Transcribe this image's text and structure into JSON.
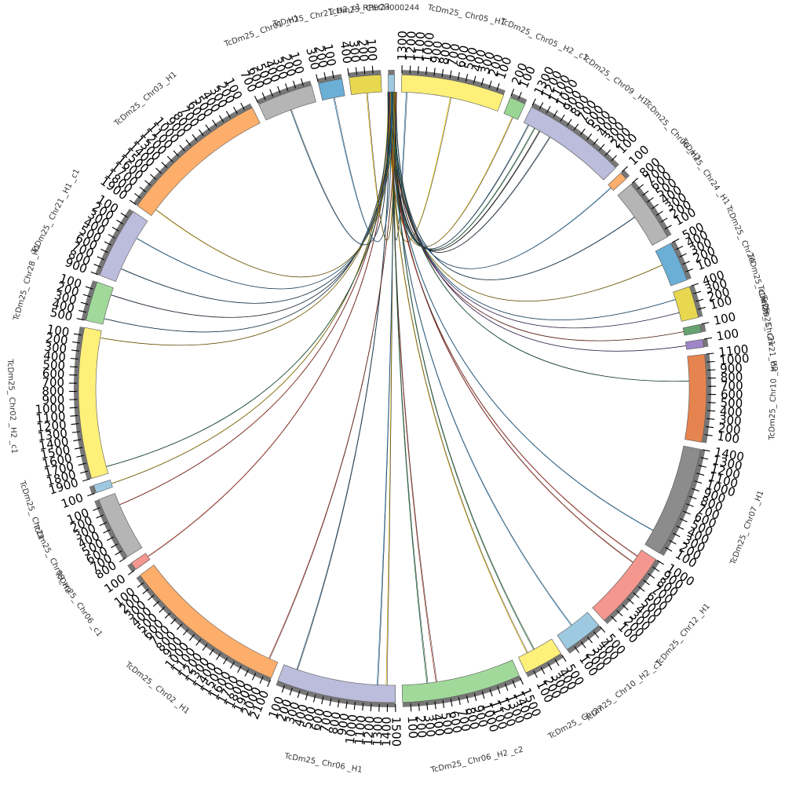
{
  "diagram": {
    "hub_label": "RPECH000244",
    "sectors": [
      {
        "label": "RPECH000244",
        "length": 30,
        "color": "#9ecae1",
        "ticks": []
      },
      {
        "label": "TcDm25_ Chr05 _H1",
        "length": 1300,
        "color": "#fff07a"
      },
      {
        "label": "TcDm25_ Chr05 _H2 _c1",
        "length": 200,
        "color": "#99d594"
      },
      {
        "label": "TcDm25_ Chr09 _H1",
        "length": 1300,
        "color": "#bcbddc"
      },
      {
        "label": "TcDm25_ Chr06 _H2",
        "length": 100,
        "color": "#fdae6b"
      },
      {
        "label": "TcDm25_ Chr24 _H1",
        "length": 800,
        "color": "#b5b5b5"
      },
      {
        "label": "TcDm25_ Chr24",
        "length": 500,
        "color": "#6baed6"
      },
      {
        "label": "TcDm25_ Chr25",
        "length": 400,
        "color": "#e7d84f"
      },
      {
        "label": "TcDm25_ Chr21",
        "length": 100,
        "color": "#66a36f"
      },
      {
        "label": "TcDm25_ Chr21_H2",
        "length": 100,
        "color": "#9e86c8"
      },
      {
        "label": "TcDm25_ Chr10 _H2",
        "length": 1100,
        "color": "#e6844f"
      },
      {
        "label": "TcDm25_ Chr07 _H1",
        "length": 1400,
        "color": "#8c8c8c"
      },
      {
        "label": "TcDm25_ Chr12 _H1",
        "length": 1000,
        "color": "#f4978e"
      },
      {
        "label": "TcDm25_ Chr10 _H2 _c1",
        "length": 500,
        "color": "#9ecae1"
      },
      {
        "label": "TcDm25_ Chr27",
        "length": 500,
        "color": "#fff07a"
      },
      {
        "label": "TcDm25_ Chr06 _H2 _c2",
        "length": 1500,
        "color": "#a1d99b"
      },
      {
        "label": "TcDm25_ Chr06 _H1",
        "length": 1500,
        "color": "#bcbddc"
      },
      {
        "label": "TcDm25_ Chr02 _H1",
        "length": 2100,
        "color": "#fdae6b"
      },
      {
        "label": "TcDm25_ Chr06 _c1",
        "length": 100,
        "color": "#f4978e"
      },
      {
        "label": "TcDm25_ Chr09_H2",
        "length": 800,
        "color": "#b5b5b5"
      },
      {
        "label": "TcDm25_ Chr21",
        "length": 100,
        "color": "#9ecae1"
      },
      {
        "label": "TcDm25_ Chr02 _H2 _c1",
        "length": 1900,
        "color": "#fff07a"
      },
      {
        "label": "TcDm25_ Chr28 _H1",
        "length": 500,
        "color": "#a1d99b"
      },
      {
        "label": "TcDm25_ Chr21 _H1 _c1",
        "length": 900,
        "color": "#bcbddc"
      },
      {
        "label": "TcDm25_ Chr03 _H1",
        "length": 1900,
        "color": "#fdae6b"
      },
      {
        "label": "TcDm25_ Chr01 _H1",
        "length": 700,
        "color": "#b5b5b5"
      },
      {
        "label": "TcDm25_ Chr21_H2_c1",
        "length": 300,
        "color": "#6baed6"
      },
      {
        "label": "TcDm25_ Chr23",
        "length": 400,
        "color": "#e7d84f"
      }
    ],
    "ribbons": [
      {
        "from": 1,
        "pos": 0.05,
        "color": "#2c7fb8"
      },
      {
        "from": 1,
        "pos": 0.5,
        "color": "#e5c100"
      },
      {
        "from": 2,
        "pos": 0.6,
        "color": "#c9a100"
      },
      {
        "from": 3,
        "pos": 0.05,
        "color": "#1b4f72"
      },
      {
        "from": 3,
        "pos": 0.12,
        "color": "#1a6b3c"
      },
      {
        "from": 3,
        "pos": 0.18,
        "color": "#000000"
      },
      {
        "from": 3,
        "pos": 0.3,
        "color": "#243b55"
      },
      {
        "from": 4,
        "pos": 0.5,
        "color": "#2c7fb8"
      },
      {
        "from": 5,
        "pos": 0.45,
        "color": "#1b4f72"
      },
      {
        "from": 6,
        "pos": 0.4,
        "color": "#c9a100"
      },
      {
        "from": 7,
        "pos": 0.25,
        "color": "#2c7fb8"
      },
      {
        "from": 7,
        "pos": 0.7,
        "color": "#6b4c9a"
      },
      {
        "from": 8,
        "pos": 0.5,
        "color": "#a33a2a"
      },
      {
        "from": 9,
        "pos": 0.5,
        "color": "#5b3a8a"
      },
      {
        "from": 10,
        "pos": 0.3,
        "color": "#1a6b3c"
      },
      {
        "from": 11,
        "pos": 0.85,
        "color": "#2c7fb8"
      },
      {
        "from": 12,
        "pos": 0.1,
        "color": "#c0392b"
      },
      {
        "from": 12,
        "pos": 0.2,
        "color": "#a33a2a"
      },
      {
        "from": 13,
        "pos": 0.55,
        "color": "#2c7fb8"
      },
      {
        "from": 14,
        "pos": 0.55,
        "color": "#1a6b3c"
      },
      {
        "from": 14,
        "pos": 0.75,
        "color": "#c9a100"
      },
      {
        "from": 15,
        "pos": 0.7,
        "color": "#a33a2a"
      },
      {
        "from": 15,
        "pos": 0.78,
        "color": "#1a6b3c"
      },
      {
        "from": 16,
        "pos": 0.08,
        "color": "#c9a100"
      },
      {
        "from": 16,
        "pos": 0.16,
        "color": "#2c7fb8"
      },
      {
        "from": 16,
        "pos": 0.88,
        "color": "#1b4f72"
      },
      {
        "from": 17,
        "pos": 0.06,
        "color": "#a33a2a"
      },
      {
        "from": 18,
        "pos": 0.5,
        "color": "#c0392b"
      },
      {
        "from": 19,
        "pos": 0.8,
        "color": "#c0392b"
      },
      {
        "from": 20,
        "pos": 0.5,
        "color": "#c9a100"
      },
      {
        "from": 21,
        "pos": 0.05,
        "color": "#1a6b3c"
      },
      {
        "from": 21,
        "pos": 0.95,
        "color": "#c9a100"
      },
      {
        "from": 22,
        "pos": 0.15,
        "color": "#1b4f72"
      },
      {
        "from": 22,
        "pos": 0.8,
        "color": "#243b55"
      },
      {
        "from": 23,
        "pos": 0.2,
        "color": "#1b4f72"
      },
      {
        "from": 23,
        "pos": 0.7,
        "color": "#2c7fb8"
      },
      {
        "from": 24,
        "pos": 0.05,
        "color": "#c9a100"
      },
      {
        "from": 25,
        "pos": 0.5,
        "color": "#1b4f72"
      },
      {
        "from": 26,
        "pos": 0.5,
        "color": "#2c7fb8"
      },
      {
        "from": 27,
        "pos": 0.5,
        "color": "#c9a100"
      }
    ]
  }
}
